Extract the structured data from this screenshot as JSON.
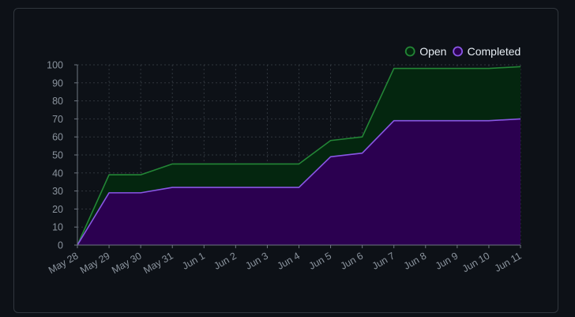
{
  "chart_data": {
    "type": "area",
    "title": "",
    "xlabel": "",
    "ylabel": "",
    "categories": [
      "May 28",
      "May 29",
      "May 30",
      "May 31",
      "Jun 1",
      "Jun 2",
      "Jun 3",
      "Jun 4",
      "Jun 5",
      "Jun 6",
      "Jun 7",
      "Jun 8",
      "Jun 9",
      "Jun 10",
      "Jun 11"
    ],
    "ylim": [
      0,
      100
    ],
    "yticks": [
      0,
      10,
      20,
      30,
      40,
      50,
      60,
      70,
      80,
      90,
      100
    ],
    "grid": true,
    "legend": "top-right",
    "series": [
      {
        "name": "Open",
        "color": "#238636",
        "fill": "#04260f",
        "values": [
          0,
          39,
          39,
          45,
          45,
          45,
          45,
          45,
          58,
          60,
          98,
          98,
          98,
          98,
          99
        ]
      },
      {
        "name": "Completed",
        "color": "#8957e5",
        "fill": "#2b0050",
        "values": [
          0,
          29,
          29,
          32,
          32,
          32,
          32,
          32,
          49,
          51,
          69,
          69,
          69,
          69,
          70
        ]
      }
    ]
  }
}
